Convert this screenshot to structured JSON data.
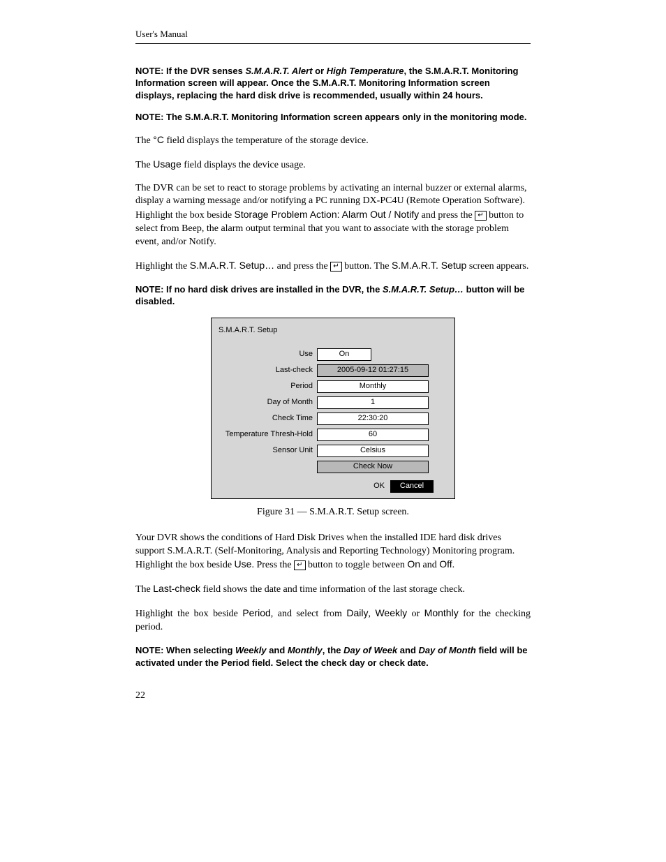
{
  "header": {
    "running_head": "User's Manual"
  },
  "notes": {
    "n1_a": "NOTE:  If the DVR senses ",
    "n1_b": "S.M.A.R.T. Alert",
    "n1_c": " or ",
    "n1_d": "High Temperature",
    "n1_e": ", the S.M.A.R.T. Monitoring Information screen will appear.  Once the S.M.A.R.T. Monitoring Information screen displays, replacing the hard disk drive is recommended, usually within 24 hours.",
    "n2": "NOTE:  The S.M.A.R.T. Monitoring Information screen appears only in the monitoring mode.",
    "n3_a": "NOTE:  If no hard disk drives are installed in the DVR, the ",
    "n3_b": "S.M.A.R.T. Setup…",
    "n3_c": " button will be disabled.",
    "n4_a": "NOTE:  When selecting ",
    "n4_b": "Weekly",
    "n4_c": " and ",
    "n4_d": "Monthly",
    "n4_e": ", the ",
    "n4_f": "Day of Week",
    "n4_g": " and ",
    "n4_h": "Day of Month",
    "n4_i": " field will be activated under the Period field.  Select the check day or check date."
  },
  "body": {
    "p1_a": "The ",
    "p1_b": "°C",
    "p1_c": " field displays the temperature of the storage device.",
    "p2_a": "The ",
    "p2_b": "Usage",
    "p2_c": " field displays the device usage.",
    "p3_a": "The DVR can be set to react to storage problems by activating an internal buzzer or external alarms, display a warning message and/or notifying a PC running DX-PC4U (Remote Operation Software). Highlight the box beside ",
    "p3_b": "Storage Problem Action: Alarm Out / Notify",
    "p3_c": " and press the ",
    "p3_d": " button to select from Beep, the alarm output terminal that you want to associate with the storage problem event, and/or Notify.",
    "p4_a": "Highlight the ",
    "p4_b": "S.M.A.R.T. Setup…",
    "p4_c": " and press the ",
    "p4_d": " button.  The ",
    "p4_e": "S.M.A.R.T. Setup",
    "p4_f": " screen appears.",
    "p5_a": "Your DVR shows the conditions of Hard Disk Drives when the installed IDE hard disk drives support S.M.A.R.T. (Self-Monitoring, Analysis and Reporting Technology) Monitoring program. Highlight the box beside ",
    "p5_b": "Use",
    "p5_c": ".  Press the ",
    "p5_d": " button to toggle between ",
    "p5_e": "On",
    "p5_f": " and ",
    "p5_g": "Off",
    "p5_h": ".",
    "p6_a": "The ",
    "p6_b": "Last-check",
    "p6_c": " field shows the date and time information of the last storage check.",
    "p7_a": "Highlight the box beside ",
    "p7_b": "Period",
    "p7_c": ", and select from ",
    "p7_d": "Daily",
    "p7_e": ", ",
    "p7_f": "Weekly",
    "p7_g": " or ",
    "p7_h": "Monthly",
    "p7_i": " for the checking period."
  },
  "enter_glyph": "↵",
  "caption": "Figure 31 — S.M.A.R.T. Setup screen.",
  "page_number": "22",
  "ui": {
    "title": "S.M.A.R.T. Setup",
    "rows": {
      "use": {
        "label": "Use",
        "value": "On",
        "narrow": true,
        "gray": false
      },
      "lastcheck": {
        "label": "Last-check",
        "value": "2005-09-12  01:27:15",
        "narrow": false,
        "gray": true
      },
      "period": {
        "label": "Period",
        "value": "Monthly",
        "narrow": false,
        "gray": false
      },
      "dom": {
        "label": "Day of Month",
        "value": "1",
        "narrow": false,
        "gray": false
      },
      "checktime": {
        "label": "Check Time",
        "value": "22:30:20",
        "narrow": false,
        "gray": false
      },
      "thresh": {
        "label": "Temperature Thresh-Hold",
        "value": "60",
        "narrow": false,
        "gray": false
      },
      "unit": {
        "label": "Sensor Unit",
        "value": "Celsius",
        "narrow": false,
        "gray": false
      }
    },
    "check_now": "Check Now",
    "ok": "OK",
    "cancel": "Cancel"
  }
}
